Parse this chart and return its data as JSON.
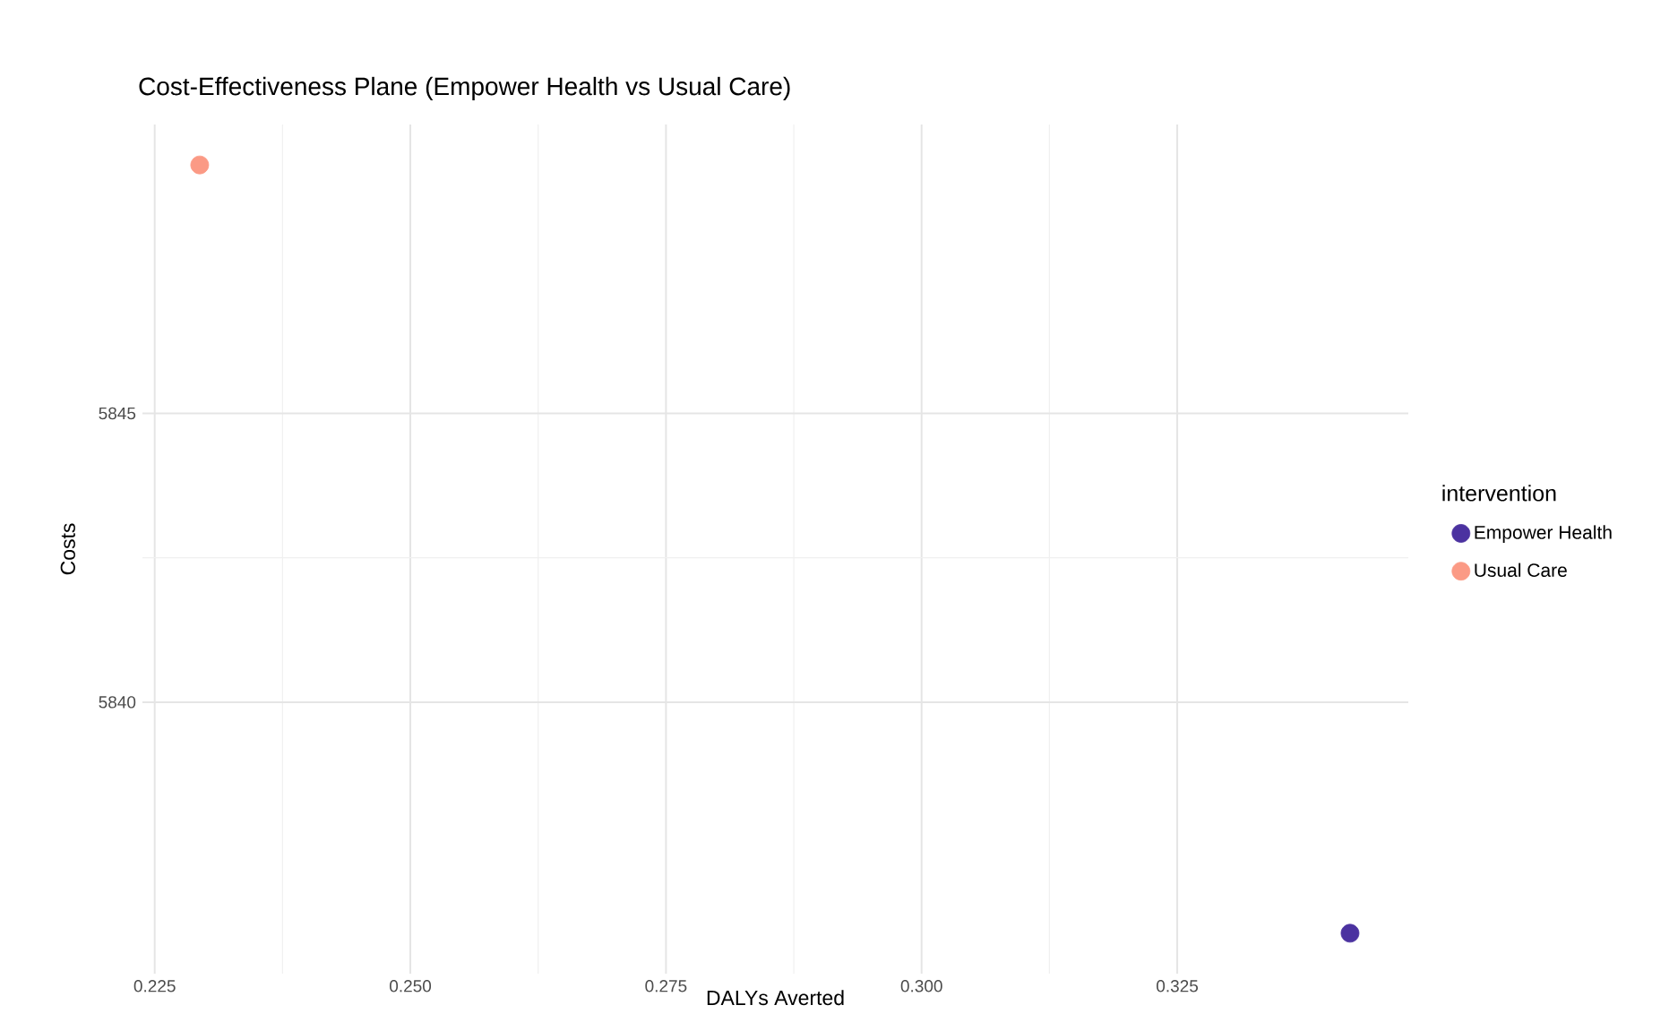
{
  "chart_data": {
    "type": "scatter",
    "title": "Cost-Effectiveness Plane (Empower Health vs Usual Care)",
    "xlabel": "DALYs Averted",
    "ylabel": "Costs",
    "legend_title": "intervention",
    "series": [
      {
        "name": "Empower Health",
        "color": "#4b32a0",
        "x": [
          0.3419
        ],
        "values": [
          5836.0
        ]
      },
      {
        "name": "Usual Care",
        "color": "#fb9a85",
        "x": [
          0.2294
        ],
        "values": [
          5849.3
        ]
      }
    ],
    "xlim": [
      0.2238,
      0.3476
    ],
    "ylim": [
      5835.3,
      5850
    ],
    "xticks": [
      0.225,
      {
        "value": 0.25,
        "label": "0.250"
      },
      0.275,
      {
        "value": 0.3,
        "label": "0.300"
      },
      0.325
    ],
    "yticks": [
      5840,
      5845
    ],
    "grid": true,
    "legend": "right"
  }
}
